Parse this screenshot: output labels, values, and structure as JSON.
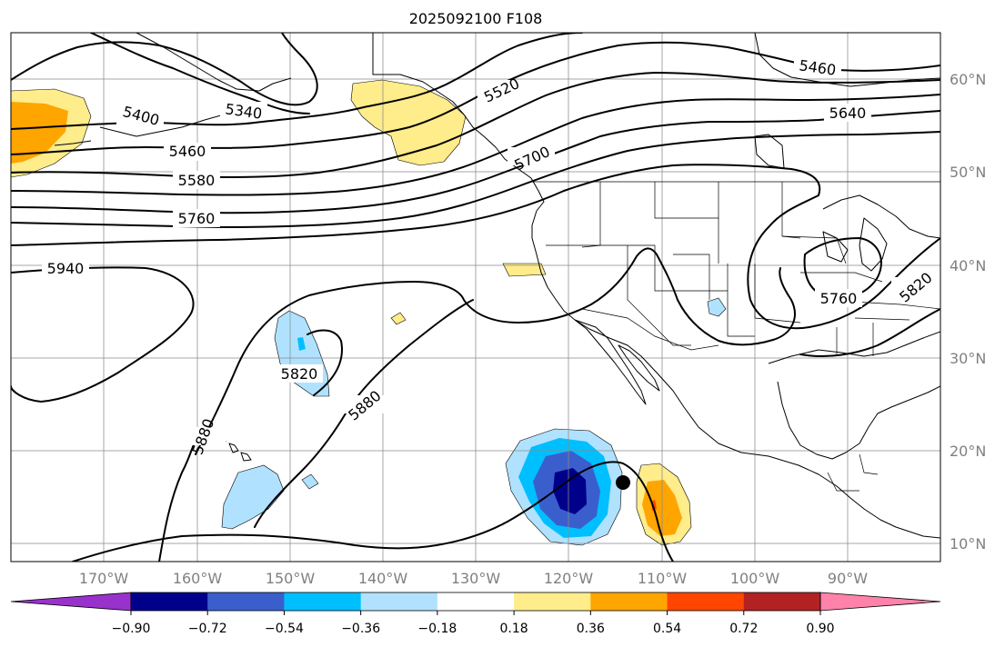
{
  "title": "2025092100 F108",
  "map": {
    "lat_labels": [
      "60°N",
      "50°N",
      "40°N",
      "30°N",
      "20°N",
      "10°N"
    ],
    "lon_labels": [
      "170°W",
      "160°W",
      "150°W",
      "140°W",
      "130°W",
      "120°W",
      "110°W",
      "100°W",
      "90°W"
    ],
    "contour_labels": [
      "5340",
      "5400",
      "5460",
      "5520",
      "5580",
      "5640",
      "5700",
      "5760",
      "5820",
      "5880",
      "5940",
      "5460",
      "5760",
      "5820",
      "5880"
    ],
    "marker": "black-dot"
  },
  "colorbar": {
    "ticks": [
      "−0.90",
      "−0.72",
      "−0.54",
      "−0.36",
      "−0.18",
      "0.18",
      "0.36",
      "0.54",
      "0.72",
      "0.90"
    ],
    "colors": [
      "#9932cc",
      "#00008b",
      "#3a5fcd",
      "#00bfff",
      "#b0e2ff",
      "#ffffff",
      "#ffec8b",
      "#ffa500",
      "#ff4500",
      "#b22222",
      "#ff82ab"
    ]
  }
}
